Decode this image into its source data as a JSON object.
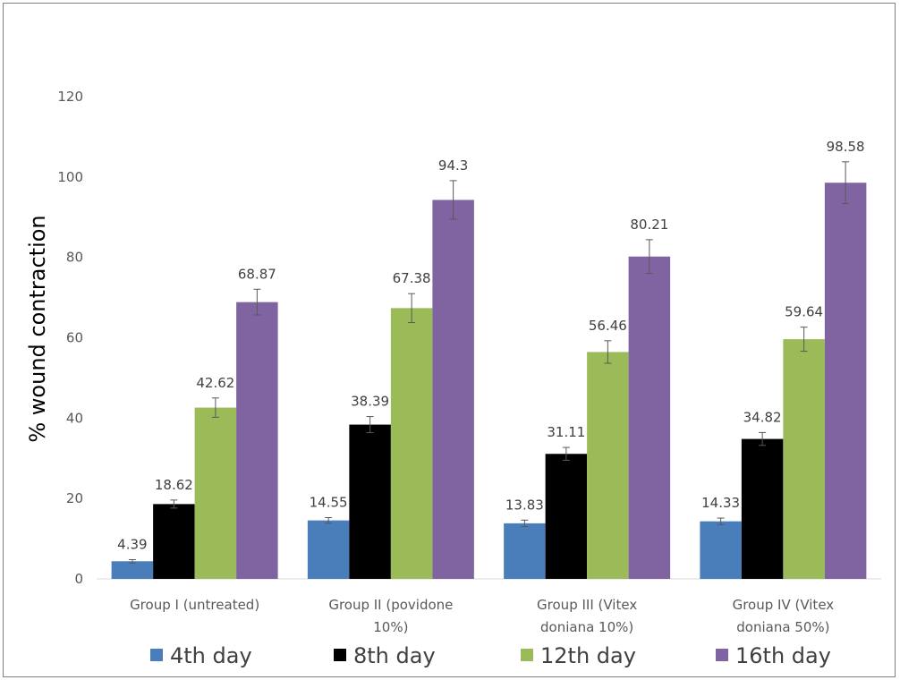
{
  "chart_data": {
    "type": "bar",
    "title": "",
    "xlabel": "",
    "ylabel": "% wound contraction",
    "ylim": [
      0,
      120
    ],
    "yticks": [
      0,
      20,
      40,
      60,
      80,
      100,
      120
    ],
    "grid": false,
    "legend_position": "bottom",
    "categories": [
      [
        "Group I (untreated)"
      ],
      [
        "Group II (povidone",
        "10%)"
      ],
      [
        "Group III (Vitex",
        "doniana 10%)"
      ],
      [
        "Group IV (Vitex",
        "doniana 50%)"
      ]
    ],
    "series": [
      {
        "name": "4th day",
        "color": "#4a7ebb",
        "values": [
          4.39,
          14.55,
          13.83,
          14.33
        ],
        "errors": [
          0.4,
          0.7,
          0.8,
          0.8
        ],
        "labels": [
          "4.39",
          "14.55",
          "13.83",
          "14.33"
        ]
      },
      {
        "name": "8th day",
        "color": "#000000",
        "values": [
          18.62,
          38.39,
          31.11,
          34.82
        ],
        "errors": [
          1.0,
          2.0,
          1.6,
          1.6
        ],
        "labels": [
          "18.62",
          "38.39",
          "31.11",
          "34.82"
        ]
      },
      {
        "name": "12th day",
        "color": "#9bbb59",
        "values": [
          42.62,
          67.38,
          56.46,
          59.64
        ],
        "errors": [
          2.4,
          3.6,
          2.8,
          3.0
        ],
        "labels": [
          "42.62",
          "67.38",
          "56.46",
          "59.64"
        ]
      },
      {
        "name": "16th day",
        "color": "#8064a2",
        "values": [
          68.87,
          94.3,
          80.21,
          98.58
        ],
        "errors": [
          3.2,
          4.8,
          4.2,
          5.2
        ],
        "labels": [
          "68.87",
          "94.3",
          "80.21",
          "98.58"
        ]
      }
    ]
  }
}
